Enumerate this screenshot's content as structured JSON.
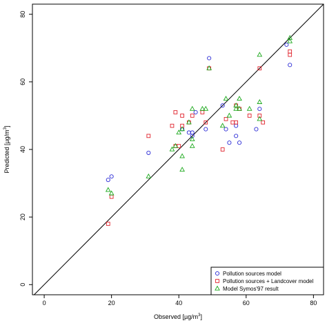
{
  "colors": {
    "pollution_sources": "#2b2bd6",
    "landcover": "#e0202a",
    "symos": "#1aa81a",
    "axis": "#000000"
  },
  "chart_data": {
    "type": "scatter",
    "xlabel": "Observed [µg/m",
    "xlabel_sup": "3",
    "xlabel_end": "]",
    "ylabel": "Predicted [µg/m",
    "ylabel_sup": "3",
    "ylabel_end": "]",
    "xlim": [
      -3.5,
      83
    ],
    "ylim": [
      -3,
      83
    ],
    "x_ticks": [
      0,
      20,
      40,
      60,
      80
    ],
    "y_ticks": [
      0,
      20,
      40,
      60,
      80
    ],
    "identity_line": true,
    "grid": false,
    "legend_position": "bottom-right",
    "series": [
      {
        "name": "Pollution sources model",
        "marker": "circle",
        "points": [
          [
            19,
            31
          ],
          [
            20,
            32
          ],
          [
            31,
            39
          ],
          [
            41,
            46
          ],
          [
            43,
            45
          ],
          [
            44,
            44
          ],
          [
            44,
            45
          ],
          [
            45,
            51
          ],
          [
            48,
            46
          ],
          [
            49,
            67
          ],
          [
            53,
            53
          ],
          [
            54,
            46
          ],
          [
            55,
            42
          ],
          [
            57,
            47
          ],
          [
            57,
            44
          ],
          [
            58,
            42
          ],
          [
            63,
            46
          ],
          [
            64,
            52
          ],
          [
            72,
            71
          ],
          [
            73,
            65
          ]
        ]
      },
      {
        "name": "Pollution sources + Landcover model",
        "marker": "square",
        "points": [
          [
            19,
            18
          ],
          [
            20,
            26
          ],
          [
            31,
            44
          ],
          [
            38,
            47
          ],
          [
            39,
            51
          ],
          [
            39,
            41
          ],
          [
            40,
            41
          ],
          [
            41,
            50
          ],
          [
            41,
            47
          ],
          [
            43,
            48
          ],
          [
            44,
            50
          ],
          [
            47,
            51
          ],
          [
            48,
            48
          ],
          [
            49,
            64
          ],
          [
            53,
            40
          ],
          [
            54,
            49
          ],
          [
            56,
            48
          ],
          [
            57,
            53
          ],
          [
            57,
            48
          ],
          [
            58,
            52
          ],
          [
            61,
            50
          ],
          [
            64,
            64
          ],
          [
            64,
            50
          ],
          [
            65,
            48
          ],
          [
            73,
            69
          ],
          [
            73,
            68
          ]
        ]
      },
      {
        "name": "Model Symos'97 result",
        "marker": "triangle",
        "points": [
          [
            19,
            28
          ],
          [
            20,
            27
          ],
          [
            31,
            32
          ],
          [
            38,
            40
          ],
          [
            39,
            41
          ],
          [
            40,
            45
          ],
          [
            41,
            34
          ],
          [
            41,
            38
          ],
          [
            41,
            46
          ],
          [
            43,
            48
          ],
          [
            44,
            52
          ],
          [
            44,
            43
          ],
          [
            44,
            41
          ],
          [
            47,
            52
          ],
          [
            48,
            52
          ],
          [
            49,
            64
          ],
          [
            53,
            47
          ],
          [
            54,
            55
          ],
          [
            55,
            50
          ],
          [
            57,
            52
          ],
          [
            57,
            53
          ],
          [
            58,
            55
          ],
          [
            58,
            52
          ],
          [
            61,
            52
          ],
          [
            64,
            54
          ],
          [
            64,
            49
          ],
          [
            64,
            68
          ],
          [
            73,
            73
          ],
          [
            73,
            72
          ]
        ]
      }
    ]
  }
}
